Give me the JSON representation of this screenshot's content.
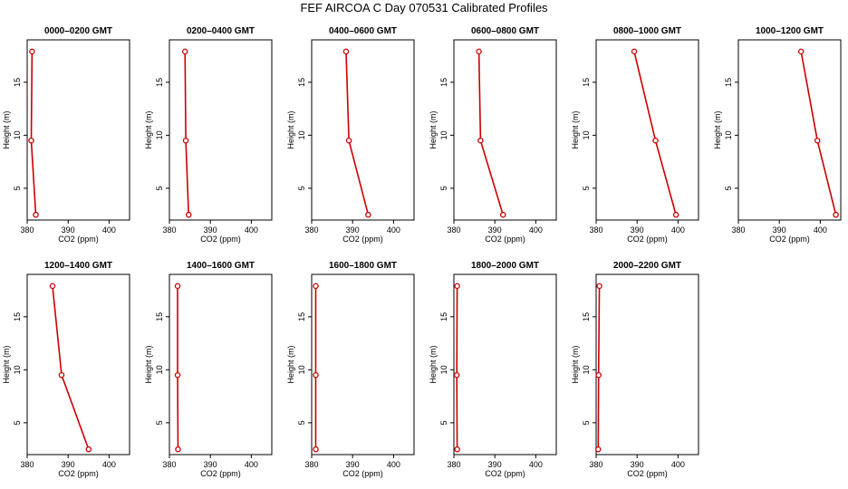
{
  "figure": {
    "title": "FEF AIRCOA C  Day 070531  Calibrated Profiles"
  },
  "colors": {
    "series": "#cc0000",
    "axes": "#000000"
  },
  "chart_data": [
    {
      "type": "line",
      "title": "0000–0200 GMT",
      "xlabel": "CO2 (ppm)",
      "ylabel": "Height (m)",
      "xlim": [
        380,
        405
      ],
      "ylim": [
        2,
        19
      ],
      "xticks": [
        380,
        390,
        400
      ],
      "yticks": [
        5,
        10,
        15
      ],
      "x": [
        381.2,
        381.0,
        382.1
      ],
      "y": [
        17.9,
        9.5,
        2.5
      ]
    },
    {
      "type": "line",
      "title": "0200–0400 GMT",
      "xlabel": "CO2 (ppm)",
      "ylabel": "Height (m)",
      "xlim": [
        380,
        405
      ],
      "ylim": [
        2,
        19
      ],
      "xticks": [
        380,
        390,
        400
      ],
      "yticks": [
        5,
        10,
        15
      ],
      "x": [
        383.8,
        384.0,
        384.7
      ],
      "y": [
        17.9,
        9.5,
        2.5
      ]
    },
    {
      "type": "line",
      "title": "0400–0600 GMT",
      "xlabel": "CO2 (ppm)",
      "ylabel": "Height (m)",
      "xlim": [
        380,
        405
      ],
      "ylim": [
        2,
        19
      ],
      "xticks": [
        380,
        390,
        400
      ],
      "yticks": [
        5,
        10,
        15
      ],
      "x": [
        388.4,
        389.1,
        393.8
      ],
      "y": [
        17.9,
        9.5,
        2.5
      ]
    },
    {
      "type": "line",
      "title": "0600–0800 GMT",
      "xlabel": "CO2 (ppm)",
      "ylabel": "Height (m)",
      "xlim": [
        380,
        405
      ],
      "ylim": [
        2,
        19
      ],
      "xticks": [
        380,
        390,
        400
      ],
      "yticks": [
        5,
        10,
        15
      ],
      "x": [
        386.1,
        386.5,
        392.0
      ],
      "y": [
        17.9,
        9.5,
        2.5
      ]
    },
    {
      "type": "line",
      "title": "0800–1000 GMT",
      "xlabel": "CO2 (ppm)",
      "ylabel": "Height (m)",
      "xlim": [
        380,
        405
      ],
      "ylim": [
        2,
        19
      ],
      "xticks": [
        380,
        390,
        400
      ],
      "yticks": [
        5,
        10,
        15
      ],
      "x": [
        389.3,
        394.5,
        399.5
      ],
      "y": [
        17.9,
        9.5,
        2.5
      ]
    },
    {
      "type": "line",
      "title": "1000–1200 GMT",
      "xlabel": "CO2 (ppm)",
      "ylabel": "Height (m)",
      "xlim": [
        380,
        405
      ],
      "ylim": [
        2,
        19
      ],
      "xticks": [
        380,
        390,
        400
      ],
      "yticks": [
        5,
        10,
        15
      ],
      "x": [
        395.3,
        399.3,
        403.8
      ],
      "y": [
        17.9,
        9.5,
        2.5
      ]
    },
    {
      "type": "line",
      "title": "1200–1400 GMT",
      "xlabel": "CO2 (ppm)",
      "ylabel": "Height (m)",
      "xlim": [
        380,
        405
      ],
      "ylim": [
        2,
        19
      ],
      "xticks": [
        380,
        390,
        400
      ],
      "yticks": [
        5,
        10,
        15
      ],
      "x": [
        386.2,
        388.4,
        395.0
      ],
      "y": [
        17.9,
        9.5,
        2.5
      ]
    },
    {
      "type": "line",
      "title": "1400–1600 GMT",
      "xlabel": "CO2 (ppm)",
      "ylabel": "Height (m)",
      "xlim": [
        380,
        405
      ],
      "ylim": [
        2,
        19
      ],
      "xticks": [
        380,
        390,
        400
      ],
      "yticks": [
        5,
        10,
        15
      ],
      "x": [
        382.0,
        382.0,
        382.1
      ],
      "y": [
        17.9,
        9.5,
        2.5
      ]
    },
    {
      "type": "line",
      "title": "1600–1800 GMT",
      "xlabel": "CO2 (ppm)",
      "ylabel": "Height (m)",
      "xlim": [
        380,
        405
      ],
      "ylim": [
        2,
        19
      ],
      "xticks": [
        380,
        390,
        400
      ],
      "yticks": [
        5,
        10,
        15
      ],
      "x": [
        381.0,
        381.0,
        381.0
      ],
      "y": [
        17.9,
        9.5,
        2.5
      ]
    },
    {
      "type": "line",
      "title": "1800–2000 GMT",
      "xlabel": "CO2 (ppm)",
      "ylabel": "Height (m)",
      "xlim": [
        380,
        405
      ],
      "ylim": [
        2,
        19
      ],
      "xticks": [
        380,
        390,
        400
      ],
      "yticks": [
        5,
        10,
        15
      ],
      "x": [
        380.8,
        380.7,
        380.8
      ],
      "y": [
        17.9,
        9.5,
        2.5
      ]
    },
    {
      "type": "line",
      "title": "2000–2200 GMT",
      "xlabel": "CO2 (ppm)",
      "ylabel": "Height (m)",
      "xlim": [
        380,
        405
      ],
      "ylim": [
        2,
        19
      ],
      "xticks": [
        380,
        390,
        400
      ],
      "yticks": [
        5,
        10,
        15
      ],
      "x": [
        380.8,
        380.6,
        380.5
      ],
      "y": [
        17.9,
        9.5,
        2.5
      ]
    }
  ]
}
